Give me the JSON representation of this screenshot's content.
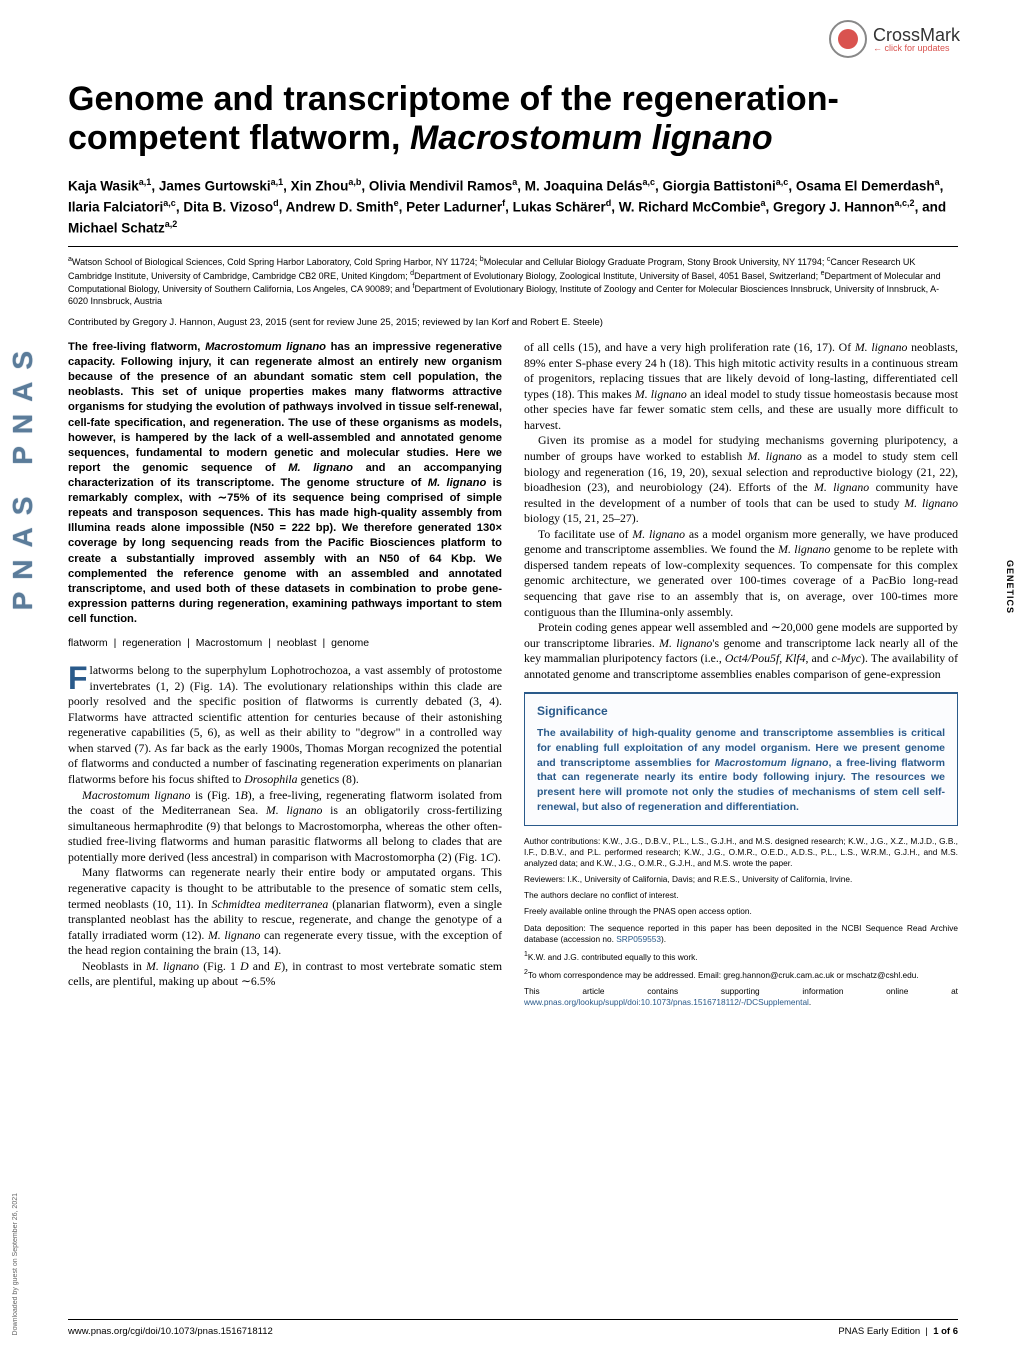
{
  "crossmark": {
    "label": "CrossMark",
    "sub": "← click for updates"
  },
  "pnas_side": "PNAS  PNAS",
  "title_pre": "Genome and transcriptome of the regeneration-competent flatworm, ",
  "title_species": "Macrostomum lignano",
  "authors_html": "Kaja Wasik<sup>a,1</sup>, James Gurtowski<sup>a,1</sup>, Xin Zhou<sup>a,b</sup>, Olivia Mendivil Ramos<sup>a</sup>, M. Joaquina Delás<sup>a,c</sup>, Giorgia Battistoni<sup>a,c</sup>, Osama El Demerdash<sup>a</sup>, Ilaria Falciatori<sup>a,c</sup>, Dita B. Vizoso<sup>d</sup>, Andrew D. Smith<sup>e</sup>, Peter Ladurner<sup>f</sup>, Lukas Schärer<sup>d</sup>, W. Richard McCombie<sup>a</sup>, Gregory J. Hannon<sup>a,c,2</sup>, and Michael Schatz<sup>a,2</sup>",
  "affiliations_html": "<sup>a</sup>Watson School of Biological Sciences, Cold Spring Harbor Laboratory, Cold Spring Harbor, NY 11724; <sup>b</sup>Molecular and Cellular Biology Graduate Program, Stony Brook University, NY 11794; <sup>c</sup>Cancer Research UK Cambridge Institute, University of Cambridge, Cambridge CB2 0RE, United Kingdom; <sup>d</sup>Department of Evolutionary Biology, Zoological Institute, University of Basel, 4051 Basel, Switzerland; <sup>e</sup>Department of Molecular and Computational Biology, University of Southern California, Los Angeles, CA 90089; and <sup>f</sup>Department of Evolutionary Biology, Institute of Zoology and Center for Molecular Biosciences Innsbruck, University of Innsbruck, A-6020 Innsbruck, Austria",
  "contributed": "Contributed by Gregory J. Hannon, August 23, 2015 (sent for review June 25, 2015; reviewed by Ian Korf and Robert E. Steele)",
  "abstract_html": "The free-living flatworm, <span class='species'>Macrostomum lignano</span> has an impressive regenerative capacity. Following injury, it can regenerate almost an entirely new organism because of the presence of an abundant somatic stem cell population, the neoblasts. This set of unique properties makes many flatworms attractive organisms for studying the evolution of pathways involved in tissue self-renewal, cell-fate specification, and regeneration. The use of these organisms as models, however, is hampered by the lack of a well-assembled and annotated genome sequences, fundamental to modern genetic and molecular studies. Here we report the genomic sequence of <span class='species'>M. lignano</span> and an accompanying characterization of its transcriptome. The genome structure of <span class='species'>M. lignano</span> is remarkably complex, with ∼75% of its sequence being comprised of simple repeats and transposon sequences. This has made high-quality assembly from Illumina reads alone impossible (N50 = 222 bp). We therefore generated 130× coverage by long sequencing reads from the Pacific Biosciences platform to create a substantially improved assembly with an N50 of 64 Kbp. We complemented the reference genome with an assembled and annotated transcriptome, and used both of these datasets in combination to probe gene-expression patterns during regeneration, examining pathways important to stem cell function.",
  "keywords": [
    "flatworm",
    "regeneration",
    "Macrostomum",
    "neoblast",
    "genome"
  ],
  "body_left": [
    "latworms belong to the superphylum Lophotrochozoa, a vast assembly of protostome invertebrates (1, 2) (Fig. 1<span class='species'>A</span>). The evolutionary relationships within this clade are poorly resolved and the specific position of flatworms is currently debated (3, 4). Flatworms have attracted scientific attention for centuries because of their astonishing regenerative capabilities (5, 6), as well as their ability to \"degrow\" in a controlled way when starved (7). As far back as the early 1900s, Thomas Morgan recognized the potential of flatworms and conducted a number of fascinating regeneration experiments on planarian flatworms before his focus shifted to <span class='species'>Drosophila</span> genetics (8).",
    "<span class='species'>Macrostomum lignano</span> is (Fig. 1<span class='species'>B</span>), a free-living, regenerating flatworm isolated from the coast of the Mediterranean Sea. <span class='species'>M. lignano</span> is an obligatorily cross-fertilizing simultaneous hermaphrodite (9) that belongs to Macrostomorpha, whereas the other often-studied free-living flatworms and human parasitic flatworms all belong to clades that are potentially more derived (less ancestral) in comparison with Macrostomorpha (2) (Fig. 1<span class='species'>C</span>).",
    "Many flatworms can regenerate nearly their entire body or amputated organs. This regenerative capacity is thought to be attributable to the presence of somatic stem cells, termed neoblasts (10, 11). In <span class='species'>Schmidtea mediterranea</span> (planarian flatworm), even a single transplanted neoblast has the ability to rescue, regenerate, and change the genotype of a fatally irradiated worm (12). <span class='species'>M. lignano</span> can regenerate every tissue, with the exception of the head region containing the brain (13, 14).",
    "Neoblasts in <span class='species'>M. lignano</span> (Fig. 1 <span class='species'>D</span> and <span class='species'>E</span>), in contrast to most vertebrate somatic stem cells, are plentiful, making up about ∼6.5%"
  ],
  "body_right": [
    "of all cells (15), and have a very high proliferation rate (16, 17). Of <span class='species'>M. lignano</span> neoblasts, 89% enter S-phase every 24 h (18). This high mitotic activity results in a continuous stream of progenitors, replacing tissues that are likely devoid of long-lasting, differentiated cell types (18). This makes <span class='species'>M. lignano</span> an ideal model to study tissue homeostasis because most other species have far fewer somatic stem cells, and these are usually more difficult to harvest.",
    "Given its promise as a model for studying mechanisms governing pluripotency, a number of groups have worked to establish <span class='species'>M. lignano</span> as a model to study stem cell biology and regeneration (16, 19, 20), sexual selection and reproductive biology (21, 22), bioadhesion (23), and neurobiology (24). Efforts of the <span class='species'>M. lignano</span> community have resulted in the development of a number of tools that can be used to study <span class='species'>M. lignano</span> biology (15, 21, 25–27).",
    "To facilitate use of <span class='species'>M. lignano</span> as a model organism more generally, we have produced genome and transcriptome assemblies. We found the <span class='species'>M. lignano</span> genome to be replete with dispersed tandem repeats of low-complexity sequences. To compensate for this complex genomic architecture, we generated over 100-times coverage of a PacBio long-read sequencing that gave rise to an assembly that is, on average, over 100-times more contiguous than the Illumina-only assembly.",
    "Protein coding genes appear well assembled and ∼20,000 gene models are supported by our transcriptome libraries. <span class='species'>M. lignano</span>'s genome and transcriptome lack nearly all of the key mammalian pluripotency factors (i.e., <span class='species'>Oct4/Pou5f</span>, <span class='species'>Klf4</span>, and <span class='species'>c-Myc</span>). The availability of annotated genome and transcriptome assemblies enables comparison of gene-expression"
  ],
  "significance": {
    "title": "Significance",
    "body_html": "The availability of high-quality genome and transcriptome assemblies is critical for enabling full exploitation of any model organism. Here we present genome and transcriptome assemblies for <span class='species'>Macrostomum lignano</span>, a free-living flatworm that can regenerate nearly its entire body following injury. The resources we present here will promote not only the studies of mechanisms of stem cell self-renewal, but also of regeneration and differentiation."
  },
  "footnotes": [
    "Author contributions: K.W., J.G., D.B.V., P.L., L.S., G.J.H., and M.S. designed research; K.W., J.G., X.Z., M.J.D., G.B., I.F., D.B.V., and P.L. performed research; K.W., J.G., O.M.R., O.E.D., A.D.S., P.L., L.S., W.R.M., G.J.H., and M.S. analyzed data; and K.W., J.G., O.M.R., G.J.H., and M.S. wrote the paper.",
    "Reviewers: I.K., University of California, Davis; and R.E.S., University of California, Irvine.",
    "The authors declare no conflict of interest.",
    "Freely available online through the PNAS open access option.",
    "Data deposition: The sequence reported in this paper has been deposited in the NCBI Sequence Read Archive database (accession no. <a href='#'>SRP059553</a>).",
    "<sup>1</sup>K.W. and J.G. contributed equally to this work.",
    "<sup>2</sup>To whom correspondence may be addressed. Email: greg.hannon@cruk.cam.ac.uk or mschatz@cshl.edu.",
    "This article contains supporting information online at <a href='#'>www.pnas.org/lookup/suppl/doi:10.1073/pnas.1516718112/-/DCSupplemental</a>."
  ],
  "genetics_tab": "GENETICS",
  "footer": {
    "left": "www.pnas.org/cgi/doi/10.1073/pnas.1516718112",
    "right": "PNAS Early Edition | 1 of 6"
  },
  "sidewriting": "Downloaded by guest on September 26, 2021",
  "colors": {
    "accent": "#2a5a8a",
    "pnas_side": "#5b7c9a",
    "crossmark_red": "#d9534f",
    "text": "#000000",
    "bg": "#ffffff"
  }
}
